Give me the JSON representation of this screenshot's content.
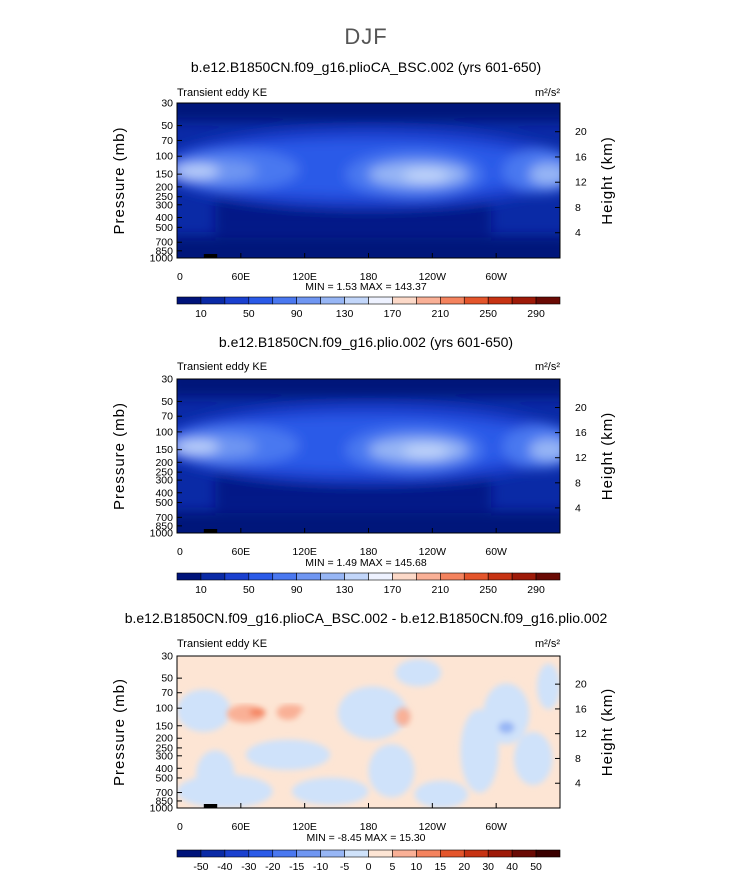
{
  "figure": {
    "title": "DJF"
  },
  "chart_data": [
    {
      "type": "heatmap",
      "title": "b.e12.B1850CN.f09_g16.plioCA_BSC.002 (yrs 601-650)",
      "subtitle_left": "Transient eddy KE",
      "units": "m²/s²",
      "ylabel": "Pressure (mb)",
      "ylabel_right": "Height (km)",
      "x_ticks": [
        "0",
        "60E",
        "120E",
        "180",
        "120W",
        "60W"
      ],
      "y_ticks": [
        "30",
        "50",
        "70",
        "100",
        "150",
        "200",
        "250",
        "300",
        "400",
        "500",
        "700",
        "850",
        "1000"
      ],
      "y_ticks_right": [
        "20",
        "16",
        "12",
        "8",
        "4"
      ],
      "stats_text": "MIN =    1.53   MAX = 143.37",
      "min": 1.53,
      "max": 143.37,
      "colorbar_labels": [
        "10",
        "50",
        "90",
        "130",
        "170",
        "210",
        "250",
        "290"
      ],
      "variant": "a"
    },
    {
      "type": "heatmap",
      "title": "b.e12.B1850CN.f09_g16.plio.002 (yrs 601-650)",
      "subtitle_left": "Transient eddy KE",
      "units": "m²/s²",
      "ylabel": "Pressure (mb)",
      "ylabel_right": "Height (km)",
      "x_ticks": [
        "0",
        "60E",
        "120E",
        "180",
        "120W",
        "60W"
      ],
      "y_ticks": [
        "30",
        "50",
        "70",
        "100",
        "150",
        "200",
        "250",
        "300",
        "400",
        "500",
        "700",
        "850",
        "1000"
      ],
      "y_ticks_right": [
        "20",
        "16",
        "12",
        "8",
        "4"
      ],
      "stats_text": "MIN =    1.49   MAX = 145.68",
      "min": 1.49,
      "max": 145.68,
      "colorbar_labels": [
        "10",
        "50",
        "90",
        "130",
        "170",
        "210",
        "250",
        "290"
      ],
      "variant": "b"
    },
    {
      "type": "heatmap",
      "title": "b.e12.B1850CN.f09_g16.plioCA_BSC.002 - b.e12.B1850CN.f09_g16.plio.002",
      "subtitle_left": "Transient eddy KE",
      "units": "m²/s²",
      "ylabel": "Pressure (mb)",
      "ylabel_right": "Height (km)",
      "x_ticks": [
        "0",
        "60E",
        "120E",
        "180",
        "120W",
        "60W"
      ],
      "y_ticks": [
        "30",
        "50",
        "70",
        "100",
        "150",
        "200",
        "250",
        "300",
        "400",
        "500",
        "700",
        "850",
        "1000"
      ],
      "y_ticks_right": [
        "20",
        "16",
        "12",
        "8",
        "4"
      ],
      "stats_text": "MIN =   -8.45   MAX =  15.30",
      "min": -8.45,
      "max": 15.3,
      "colorbar_labels": [
        "-50",
        "-40",
        "-30",
        "-20",
        "-15",
        "-10",
        "-5",
        "0",
        "5",
        "10",
        "15",
        "20",
        "30",
        "40",
        "50"
      ],
      "variant": "diff"
    }
  ],
  "colormaps": {
    "blue_red": [
      "#00137a",
      "#0a2aa6",
      "#1a40cf",
      "#2a5ae8",
      "#4a78f0",
      "#6f96f2",
      "#97b6f5",
      "#c2d6fa",
      "#eef2ff",
      "#fcd9c8",
      "#f9b096",
      "#f4835e",
      "#e4552b",
      "#c73313",
      "#9e1a08",
      "#6a0a04"
    ],
    "diff": [
      "#00137a",
      "#0a2aa6",
      "#1a40cf",
      "#2a5ae8",
      "#4a78f0",
      "#6f96f2",
      "#97b6f5",
      "#cfe2fa",
      "#fde5d4",
      "#f9b096",
      "#f4835e",
      "#e4552b",
      "#c73313",
      "#9e1a08",
      "#6a0a04",
      "#3a0000"
    ]
  }
}
